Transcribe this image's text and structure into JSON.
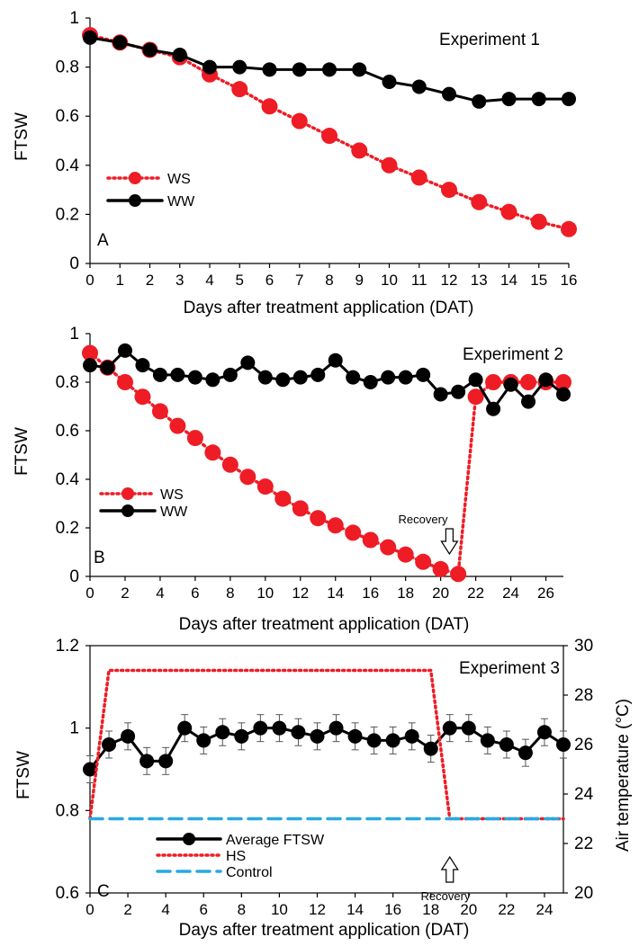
{
  "chart_data": [
    {
      "type": "line",
      "panel_label": "A",
      "annotation": "Experiment 1",
      "xlabel": "Days after treatment application (DAT)",
      "ylabel": "FTSW",
      "xlim": [
        0,
        16
      ],
      "ylim": [
        0,
        1
      ],
      "x_ticks": [
        0,
        1,
        2,
        3,
        4,
        5,
        6,
        7,
        8,
        9,
        10,
        11,
        12,
        13,
        14,
        15,
        16
      ],
      "y_ticks": [
        0,
        0.2,
        0.4,
        0.6,
        0.8,
        1
      ],
      "y_tick_labels": [
        "0",
        "0.2",
        "0.4",
        "0.6",
        "0.8",
        "1"
      ],
      "grid": false,
      "legend_position": "left",
      "series": [
        {
          "name": "WS",
          "color": "#ee1c25",
          "style": "dotted",
          "x": [
            0,
            1,
            2,
            3,
            4,
            5,
            6,
            7,
            8,
            9,
            10,
            11,
            12,
            13,
            14,
            15,
            16
          ],
          "values": [
            0.93,
            0.9,
            0.87,
            0.84,
            0.77,
            0.71,
            0.64,
            0.58,
            0.52,
            0.46,
            0.4,
            0.35,
            0.3,
            0.25,
            0.21,
            0.17,
            0.14
          ]
        },
        {
          "name": "WW",
          "color": "#000000",
          "style": "solid",
          "x": [
            0,
            1,
            2,
            3,
            4,
            5,
            6,
            7,
            8,
            9,
            10,
            11,
            12,
            13,
            14,
            15,
            16
          ],
          "values": [
            0.92,
            0.9,
            0.87,
            0.85,
            0.8,
            0.8,
            0.79,
            0.79,
            0.79,
            0.79,
            0.74,
            0.72,
            0.69,
            0.66,
            0.67,
            0.67,
            0.67
          ]
        }
      ]
    },
    {
      "type": "line",
      "panel_label": "B",
      "annotation": "Experiment 2",
      "arrow_label": "Recovery",
      "arrow_x": 20.5,
      "xlabel": "Days after treatment application (DAT)",
      "ylabel": "FTSW",
      "xlim": [
        0,
        27
      ],
      "ylim": [
        0,
        1
      ],
      "x_ticks": [
        0,
        2,
        4,
        6,
        8,
        10,
        12,
        14,
        16,
        18,
        20,
        22,
        24,
        26
      ],
      "y_ticks": [
        0,
        0.2,
        0.4,
        0.6,
        0.8,
        1
      ],
      "y_tick_labels": [
        "0",
        "0.2",
        "0.4",
        "0.6",
        "0.8",
        "1"
      ],
      "grid": false,
      "legend_position": "left",
      "series": [
        {
          "name": "WS",
          "color": "#ee1c25",
          "style": "dotted",
          "x": [
            0,
            1,
            2,
            3,
            4,
            5,
            6,
            7,
            8,
            9,
            10,
            11,
            12,
            13,
            14,
            15,
            16,
            17,
            18,
            19,
            20,
            21,
            22,
            23,
            24,
            25,
            26,
            27
          ],
          "values": [
            0.92,
            0.86,
            0.8,
            0.74,
            0.68,
            0.62,
            0.57,
            0.51,
            0.46,
            0.41,
            0.37,
            0.32,
            0.28,
            0.24,
            0.21,
            0.18,
            0.15,
            0.12,
            0.09,
            0.06,
            0.03,
            0.01,
            0.74,
            0.8,
            0.8,
            0.8,
            0.8,
            0.8
          ]
        },
        {
          "name": "WW",
          "color": "#000000",
          "style": "solid",
          "x": [
            0,
            1,
            2,
            3,
            4,
            5,
            6,
            7,
            8,
            9,
            10,
            11,
            12,
            13,
            14,
            15,
            16,
            17,
            18,
            19,
            20,
            21,
            22,
            23,
            24,
            25,
            26,
            27
          ],
          "values": [
            0.87,
            0.86,
            0.93,
            0.87,
            0.83,
            0.83,
            0.82,
            0.81,
            0.83,
            0.88,
            0.82,
            0.81,
            0.82,
            0.83,
            0.89,
            0.82,
            0.8,
            0.82,
            0.82,
            0.83,
            0.75,
            0.76,
            0.81,
            0.69,
            0.79,
            0.72,
            0.81,
            0.75
          ]
        }
      ]
    },
    {
      "type": "line",
      "panel_label": "C",
      "annotation": "Experiment 3",
      "arrow_label": "Recovery",
      "arrow_x": 19,
      "xlabel": "Days after treatment application (DAT)",
      "ylabel": "FTSW",
      "y2label": "Air temperature (°C)",
      "xlim": [
        0,
        25
      ],
      "ylim": [
        0.6,
        1.2
      ],
      "y2lim": [
        20,
        30
      ],
      "x_ticks": [
        0,
        2,
        4,
        6,
        8,
        10,
        12,
        14,
        16,
        18,
        20,
        22,
        24
      ],
      "y_ticks": [
        0.6,
        0.8,
        1.0,
        1.2
      ],
      "y_tick_labels": [
        "0.6",
        "0.8",
        "1",
        "1.2"
      ],
      "y2_ticks": [
        20,
        22,
        24,
        26,
        28,
        30
      ],
      "grid": false,
      "legend_position": "bottom-left",
      "series": [
        {
          "name": "Average FTSW",
          "color": "#000000",
          "style": "solid",
          "axis": "left",
          "error_bars": true,
          "x": [
            0,
            1,
            2,
            3,
            4,
            5,
            6,
            7,
            8,
            9,
            10,
            11,
            12,
            13,
            14,
            15,
            16,
            17,
            18,
            19,
            20,
            21,
            22,
            23,
            24,
            25
          ],
          "values": [
            0.9,
            0.96,
            0.98,
            0.92,
            0.92,
            1.0,
            0.97,
            0.99,
            0.98,
            1.0,
            1.0,
            0.99,
            0.98,
            1.0,
            0.98,
            0.97,
            0.97,
            0.98,
            0.95,
            1.0,
            1.0,
            0.97,
            0.96,
            0.94,
            0.99,
            0.96
          ]
        },
        {
          "name": "HS",
          "color": "#ee1c25",
          "style": "dotted",
          "axis": "right",
          "x": [
            0,
            1,
            18,
            19,
            25
          ],
          "values": [
            23,
            29,
            29,
            23,
            23
          ]
        },
        {
          "name": "Control",
          "color": "#29a9e1",
          "style": "dashed",
          "axis": "right",
          "x": [
            0,
            25
          ],
          "values": [
            23,
            23
          ]
        }
      ]
    }
  ]
}
